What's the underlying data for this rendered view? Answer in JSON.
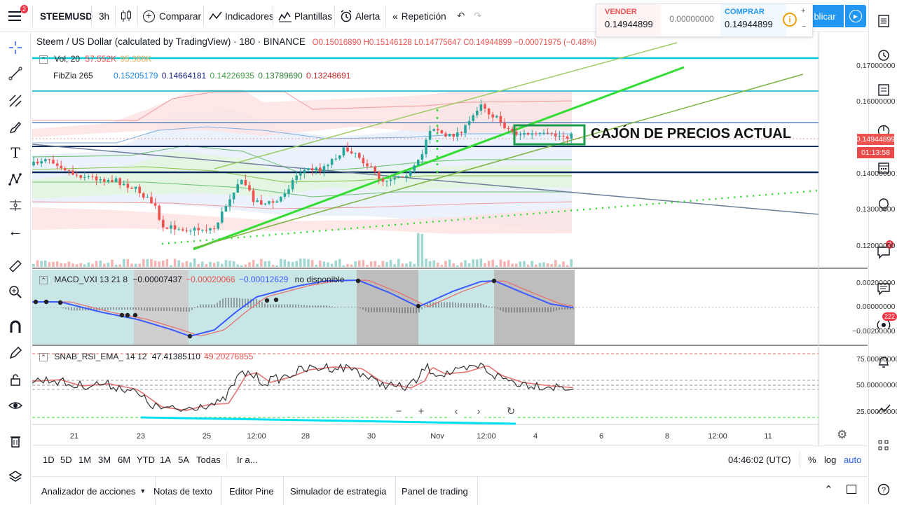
{
  "topbar": {
    "notif_count": "2",
    "symbol": "STEEMUSD",
    "interval": "3h",
    "compare": "Comparar",
    "indicators": "Indicadores",
    "templates": "Plantillas",
    "alert": "Alerta",
    "replay": "Repetición",
    "publish": "blicar"
  },
  "trade": {
    "sell_label": "VENDER",
    "sell_price": "0.14944899",
    "spread": "0.00000000",
    "buy_label": "COMPRAR",
    "buy_price": "0.14944899"
  },
  "chart": {
    "title": "Steem / US Dollar (calculated by TradingView) · 180 · BINANCE",
    "ohlc": "O0.15016890 H0.15146128 L0.14775647 C0.14944899 −0.00071975 (−0.48%)",
    "vol_label": "Vol, 20",
    "vol_v1": "57.552K",
    "vol_v2": "95.388K",
    "fib_label": "FibZia 265",
    "fib_values": [
      "0.15205179",
      "0.14664181",
      "0.14226935",
      "0.13789690",
      "0.13248691"
    ],
    "annotation": "CAJÓN DE PRECIOS ACTUAL",
    "price_axis": [
      "0.17000000",
      "0.16000000",
      "0.14000000",
      "0.13000000",
      "0.12000000"
    ],
    "last_price": "0.14944899",
    "countdown": "01:13:58",
    "time_axis": [
      "21",
      "23",
      "25",
      "12:00",
      "28",
      "30",
      "Nov",
      "12:00",
      "4",
      "6",
      "8",
      "12:00",
      "11"
    ],
    "colors": {
      "up": "#26a69a",
      "down": "#ef5350",
      "green_channel": "#33dd33",
      "cyan": "#00c8d6",
      "navy": "#0b2a5b"
    }
  },
  "macd": {
    "label": "MACD_VXI 13 21 8",
    "v1": "−0.00007437",
    "v2": "−0.00020066",
    "v3": "−0.00012629",
    "note": "no disponible",
    "axis": [
      "0.00200000",
      "0.00000000",
      "−0.00200000"
    ]
  },
  "rsi": {
    "label": "SNAB_RSI_EMA_ 14 12",
    "v1": "47.41385110",
    "v2": "49.20276855",
    "axis": [
      "75.00000000",
      "50.00000000",
      "25.00000000"
    ]
  },
  "nav_controls": [
    "−",
    "+",
    "‹",
    "›",
    "↻"
  ],
  "bottombar": {
    "ranges": [
      "1D",
      "5D",
      "1M",
      "3M",
      "6M",
      "YTD",
      "1A",
      "5A",
      "Todas"
    ],
    "goto": "Ir a...",
    "clock": "04:46:02 (UTC)",
    "percent": "%",
    "log": "log",
    "auto": "auto"
  },
  "panels": [
    "Analizador de acciones",
    "Notas de texto",
    "Editor Pine",
    "Simulador de estrategia",
    "Panel de trading"
  ],
  "right": {
    "chat_badge": "3",
    "stream_badge": "222"
  }
}
